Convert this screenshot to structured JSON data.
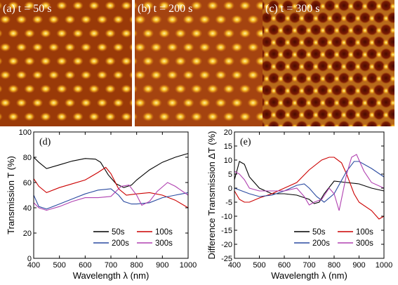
{
  "afm_panels": [
    {
      "label": "(a) t = 50 s"
    },
    {
      "label": "(b) t = 200 s"
    },
    {
      "label": "(c) t = 300 s"
    }
  ],
  "chart_data": [
    {
      "type": "line",
      "panel": "(d)",
      "xlabel": "Wavelength λ (nm)",
      "ylabel": "Transmission T (%)",
      "xlim": [
        400,
        1000
      ],
      "ylim": [
        0,
        100
      ],
      "xticks": [
        400,
        500,
        600,
        700,
        800,
        900,
        1000
      ],
      "yticks": [
        0,
        20,
        40,
        60,
        80,
        100
      ],
      "legend_position": "bottom-right",
      "series": [
        {
          "name": "50s",
          "color": "#000000",
          "x": [
            400,
            420,
            450,
            500,
            550,
            600,
            640,
            660,
            690,
            720,
            750,
            780,
            800,
            850,
            900,
            950,
            1000
          ],
          "y": [
            80,
            76,
            71,
            74,
            77,
            79,
            78.5,
            76,
            66,
            59,
            56,
            58,
            62,
            70,
            76,
            80,
            83
          ]
        },
        {
          "name": "100s",
          "color": "#cc0000",
          "x": [
            400,
            420,
            450,
            500,
            550,
            600,
            650,
            680,
            700,
            730,
            760,
            800,
            850,
            900,
            950,
            1000
          ],
          "y": [
            63,
            57,
            52,
            56,
            59,
            62,
            68,
            72,
            67,
            55,
            50,
            51,
            52,
            50,
            46,
            40
          ]
        },
        {
          "name": "200s",
          "color": "#2a4aa0",
          "x": [
            400,
            420,
            450,
            500,
            550,
            600,
            650,
            700,
            730,
            750,
            780,
            800,
            850,
            900,
            950,
            1000
          ],
          "y": [
            50,
            41,
            39,
            43,
            47,
            51,
            54,
            55,
            50,
            45,
            43,
            43,
            44,
            48,
            50,
            52
          ]
        },
        {
          "name": "300s",
          "color": "#b040b0",
          "x": [
            400,
            420,
            450,
            500,
            550,
            600,
            650,
            700,
            740,
            770,
            800,
            820,
            850,
            880,
            920,
            950,
            1000
          ],
          "y": [
            44,
            40,
            38,
            41,
            45,
            48,
            48,
            49,
            57,
            58,
            50,
            42,
            45,
            53,
            60,
            57,
            50
          ]
        }
      ],
      "legend": [
        "50s",
        "100s",
        "200s",
        "300s"
      ]
    },
    {
      "type": "line",
      "panel": "(e)",
      "xlabel": "Wavelength λ (nm)",
      "ylabel": "Difference Transmission ΔT (%)",
      "xlim": [
        400,
        1000
      ],
      "ylim": [
        -25,
        20
      ],
      "xticks": [
        400,
        500,
        600,
        700,
        800,
        900,
        1000
      ],
      "yticks": [
        -25,
        -20,
        -15,
        -10,
        -5,
        0,
        5,
        10,
        15,
        20
      ],
      "legend_position": "bottom-right",
      "series": [
        {
          "name": "50s",
          "color": "#000000",
          "x": [
            400,
            420,
            440,
            460,
            500,
            550,
            600,
            650,
            700,
            720,
            740,
            760,
            800,
            850,
            900,
            950,
            1000
          ],
          "y": [
            3,
            9.5,
            8.5,
            4,
            0,
            -2,
            -2,
            -2.5,
            -4,
            -5.5,
            -5,
            -2,
            2.5,
            2,
            1.5,
            0,
            -1
          ]
        },
        {
          "name": "100s",
          "color": "#cc0000",
          "x": [
            400,
            420,
            440,
            460,
            500,
            550,
            600,
            650,
            700,
            750,
            780,
            800,
            830,
            850,
            880,
            900,
            950,
            980,
            1000
          ],
          "y": [
            -1,
            -4,
            -5,
            -5,
            -3.5,
            -2,
            0,
            2,
            6.5,
            10,
            11,
            11,
            9,
            5,
            -2,
            -5,
            -8,
            -11,
            -10
          ]
        },
        {
          "name": "200s",
          "color": "#2a4aa0",
          "x": [
            400,
            430,
            460,
            500,
            550,
            600,
            650,
            680,
            700,
            730,
            760,
            800,
            850,
            880,
            900,
            950,
            1000
          ],
          "y": [
            0,
            -1,
            -2,
            -3,
            -2.5,
            -1,
            1,
            1.5,
            0,
            -3,
            -5,
            -2,
            6,
            9.5,
            9.5,
            7,
            4
          ]
        },
        {
          "name": "300s",
          "color": "#b040b0",
          "x": [
            400,
            420,
            440,
            460,
            500,
            550,
            600,
            650,
            680,
            700,
            720,
            750,
            780,
            800,
            820,
            850,
            870,
            890,
            920,
            950,
            1000
          ],
          "y": [
            6,
            5,
            3,
            0,
            -1,
            -1,
            -1,
            0,
            -3,
            -6,
            -5,
            -4,
            0,
            -2,
            -8,
            5,
            11,
            12,
            6,
            2,
            0
          ]
        }
      ],
      "legend": [
        "50s",
        "100s",
        "200s",
        "300s"
      ]
    }
  ]
}
